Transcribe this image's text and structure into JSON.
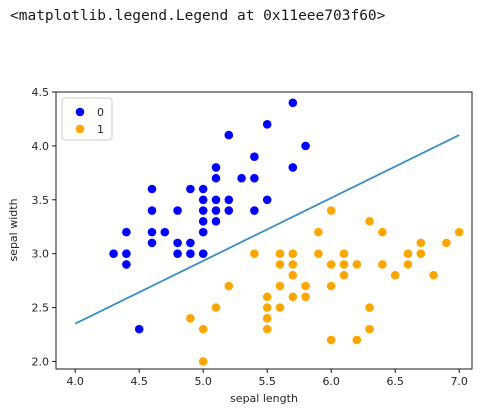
{
  "output_text": "<matplotlib.legend.Legend at 0x11eee703f60>",
  "chart_data": {
    "type": "scatter",
    "xlabel": "sepal length",
    "ylabel": "sepal width",
    "xlim": [
      3.85,
      7.1
    ],
    "ylim": [
      1.93,
      4.5
    ],
    "xticks": [
      "4.0",
      "4.5",
      "5.0",
      "5.5",
      "6.0",
      "6.5",
      "7.0"
    ],
    "yticks": [
      "2.0",
      "2.5",
      "3.0",
      "3.5",
      "4.0",
      "4.5"
    ],
    "grid": false,
    "legend_position": "top-left",
    "series": [
      {
        "name": "0",
        "color": "#0000ff",
        "points": [
          [
            4.3,
            3.0
          ],
          [
            4.4,
            3.0
          ],
          [
            4.4,
            2.9
          ],
          [
            4.4,
            3.2
          ],
          [
            4.5,
            2.3
          ],
          [
            4.6,
            3.1
          ],
          [
            4.6,
            3.2
          ],
          [
            4.6,
            3.4
          ],
          [
            4.6,
            3.6
          ],
          [
            4.7,
            3.2
          ],
          [
            4.8,
            3.0
          ],
          [
            4.8,
            3.1
          ],
          [
            4.8,
            3.4
          ],
          [
            4.9,
            3.0
          ],
          [
            4.9,
            3.1
          ],
          [
            4.9,
            3.6
          ],
          [
            5.0,
            3.0
          ],
          [
            5.0,
            3.2
          ],
          [
            5.0,
            3.3
          ],
          [
            5.0,
            3.4
          ],
          [
            5.0,
            3.5
          ],
          [
            5.0,
            3.6
          ],
          [
            5.1,
            3.3
          ],
          [
            5.1,
            3.4
          ],
          [
            5.1,
            3.5
          ],
          [
            5.1,
            3.7
          ],
          [
            5.1,
            3.8
          ],
          [
            5.2,
            3.4
          ],
          [
            5.2,
            3.5
          ],
          [
            5.2,
            4.1
          ],
          [
            5.3,
            3.7
          ],
          [
            5.4,
            3.4
          ],
          [
            5.4,
            3.7
          ],
          [
            5.4,
            3.9
          ],
          [
            5.5,
            3.5
          ],
          [
            5.5,
            4.2
          ],
          [
            5.7,
            3.8
          ],
          [
            5.7,
            4.4
          ],
          [
            5.8,
            4.0
          ]
        ]
      },
      {
        "name": "1",
        "color": "#ffa500",
        "points": [
          [
            4.9,
            2.4
          ],
          [
            5.0,
            2.0
          ],
          [
            5.0,
            2.3
          ],
          [
            5.1,
            2.5
          ],
          [
            5.2,
            2.7
          ],
          [
            5.4,
            3.0
          ],
          [
            5.5,
            2.3
          ],
          [
            5.5,
            2.4
          ],
          [
            5.5,
            2.5
          ],
          [
            5.5,
            2.6
          ],
          [
            5.6,
            2.5
          ],
          [
            5.6,
            2.7
          ],
          [
            5.6,
            2.9
          ],
          [
            5.6,
            3.0
          ],
          [
            5.7,
            2.6
          ],
          [
            5.7,
            2.8
          ],
          [
            5.7,
            2.9
          ],
          [
            5.7,
            3.0
          ],
          [
            5.8,
            2.6
          ],
          [
            5.8,
            2.7
          ],
          [
            5.9,
            3.0
          ],
          [
            5.9,
            3.2
          ],
          [
            6.0,
            2.2
          ],
          [
            6.0,
            2.7
          ],
          [
            6.0,
            2.9
          ],
          [
            6.0,
            3.4
          ],
          [
            6.1,
            2.8
          ],
          [
            6.1,
            2.9
          ],
          [
            6.1,
            3.0
          ],
          [
            6.2,
            2.2
          ],
          [
            6.2,
            2.9
          ],
          [
            6.3,
            2.3
          ],
          [
            6.3,
            2.5
          ],
          [
            6.3,
            3.3
          ],
          [
            6.4,
            2.9
          ],
          [
            6.4,
            3.2
          ],
          [
            6.5,
            2.8
          ],
          [
            6.6,
            2.9
          ],
          [
            6.6,
            3.0
          ],
          [
            6.7,
            3.0
          ],
          [
            6.7,
            3.1
          ],
          [
            6.8,
            2.8
          ],
          [
            6.9,
            3.1
          ],
          [
            7.0,
            3.2
          ]
        ]
      }
    ],
    "decision_line": {
      "color": "#3a8ec6",
      "points": [
        [
          4.0,
          2.35
        ],
        [
          7.0,
          4.1
        ]
      ]
    }
  }
}
